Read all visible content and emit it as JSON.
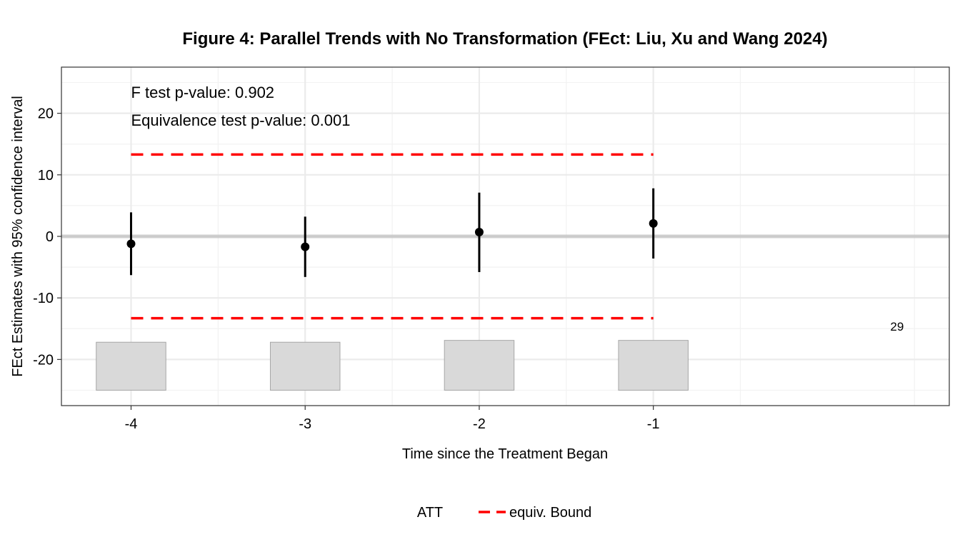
{
  "chart_data": {
    "type": "scatter",
    "title": "Figure 4: Parallel Trends with No Transformation (FEct: Liu, Xu and Wang 2024)",
    "xlabel": "Time since the Treatment Began",
    "ylabel": "FEct Estimates with 95% confidence interval",
    "xlim": [
      -4.4,
      0.7
    ],
    "ylim": [
      -27.5,
      27.5
    ],
    "x_ticks": [
      -4,
      -3,
      -2,
      -1
    ],
    "x_tick_labels": [
      "-4",
      "-3",
      "-2",
      "-1"
    ],
    "y_ticks": [
      20,
      10,
      0,
      -10,
      -20
    ],
    "y_tick_labels": [
      "20",
      "10",
      "0",
      "-10",
      "-20"
    ],
    "grid": true,
    "annotations": [
      "F test p-value: 0.902",
      "Equivalence test p-value: 0.001"
    ],
    "estimates": [
      {
        "x": -4,
        "y": -1.2,
        "ci_low": -6.3,
        "ci_high": 3.9
      },
      {
        "x": -3,
        "y": -1.7,
        "ci_low": -6.6,
        "ci_high": 3.2
      },
      {
        "x": -2,
        "y": 0.7,
        "ci_low": -5.8,
        "ci_high": 7.1
      },
      {
        "x": -1,
        "y": 2.1,
        "ci_low": -3.6,
        "ci_high": 7.8
      }
    ],
    "equivalence_bounds": {
      "upper": 13.3,
      "lower": -13.3,
      "x_from": -4,
      "x_to": -1,
      "color": "#ff0000"
    },
    "count_bars": {
      "base": -25.0,
      "tops": [
        -17.2,
        -17.2,
        -16.9,
        -16.9
      ],
      "color": "#d9d9d9",
      "max_label": "29"
    },
    "zero_line_color": "#bebebe",
    "legend": {
      "position": "bottom",
      "items": [
        {
          "label": "ATT",
          "marker": "none"
        },
        {
          "label": "equiv. Bound",
          "marker": "dashed-line",
          "color": "#ff0000"
        }
      ]
    }
  }
}
